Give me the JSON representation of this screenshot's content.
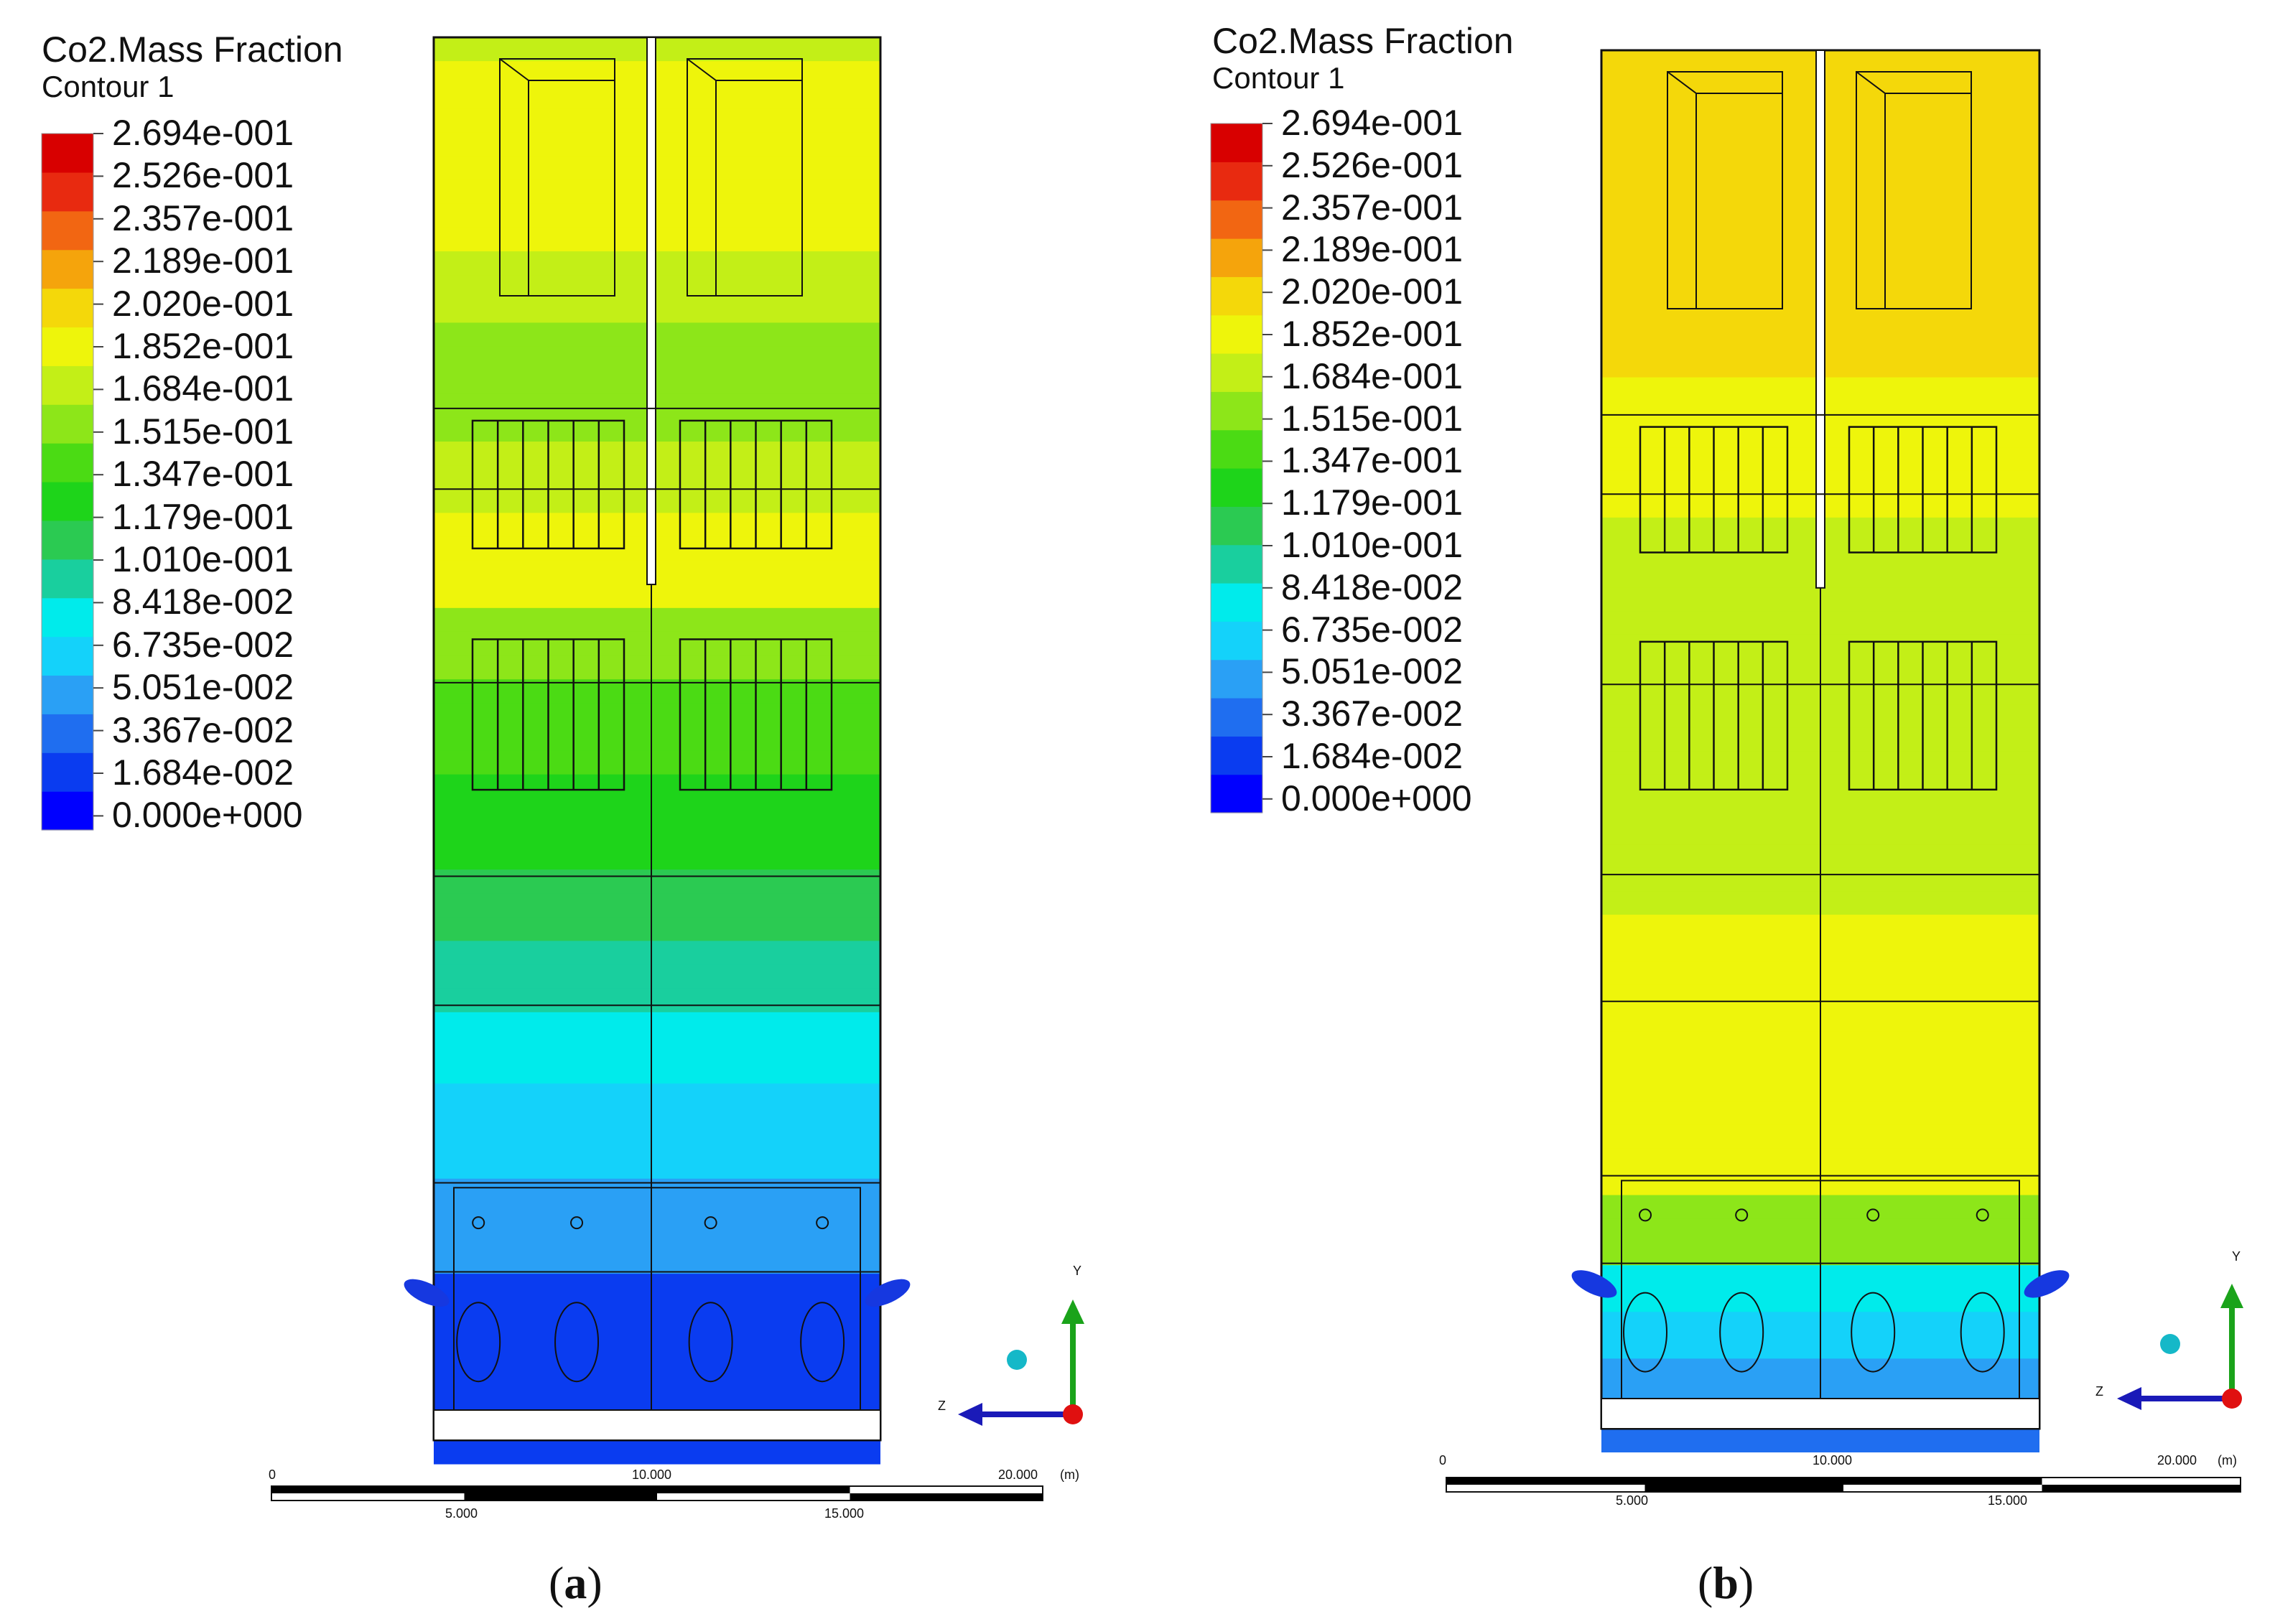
{
  "colors": {
    "scale": [
      "#0000ff",
      "#0a3cf0",
      "#1f6ef0",
      "#2aa0f5",
      "#14d2fa",
      "#00ebeb",
      "#19cf9e",
      "#2bca52",
      "#1ed41a",
      "#4bdb14",
      "#8de619",
      "#c3ef17",
      "#eef50b",
      "#f4d80a",
      "#f5a40c",
      "#f26612",
      "#e82a10",
      "#d80000"
    ],
    "line": "#111111"
  },
  "panels": [
    {
      "id": "a",
      "title": "Co2.Mass Fraction",
      "subtitle": "Contour 1",
      "legend_values": [
        "2.694e-001",
        "2.526e-001",
        "2.357e-001",
        "2.189e-001",
        "2.020e-001",
        "1.852e-001",
        "1.684e-001",
        "1.515e-001",
        "1.347e-001",
        "1.179e-001",
        "1.010e-001",
        "8.418e-002",
        "6.735e-002",
        "5.051e-002",
        "3.367e-002",
        "1.684e-002",
        "0.000e+000"
      ],
      "scale_bar": {
        "top_left": "0",
        "top_mid": "10.000",
        "top_right": "20.000",
        "unit": "(m)",
        "bottom_left": "5.000",
        "bottom_right": "15.000"
      },
      "axes": {
        "y": "Y",
        "z": "Z"
      },
      "caption": "a",
      "contour": "low_bottom"
    },
    {
      "id": "b",
      "title": "Co2.Mass Fraction",
      "subtitle": "Contour 1",
      "legend_values": [
        "2.694e-001",
        "2.526e-001",
        "2.357e-001",
        "2.189e-001",
        "2.020e-001",
        "1.852e-001",
        "1.684e-001",
        "1.515e-001",
        "1.347e-001",
        "1.179e-001",
        "1.010e-001",
        "8.418e-002",
        "6.735e-002",
        "5.051e-002",
        "3.367e-002",
        "1.684e-002",
        "0.000e+000"
      ],
      "scale_bar": {
        "top_left": "0",
        "top_mid": "10.000",
        "top_right": "20.000",
        "unit": "(m)",
        "bottom_left": "5.000",
        "bottom_right": "15.000"
      },
      "axes": {
        "y": "Y",
        "z": "Z"
      },
      "caption": "b",
      "contour": "high_uniform"
    }
  ]
}
